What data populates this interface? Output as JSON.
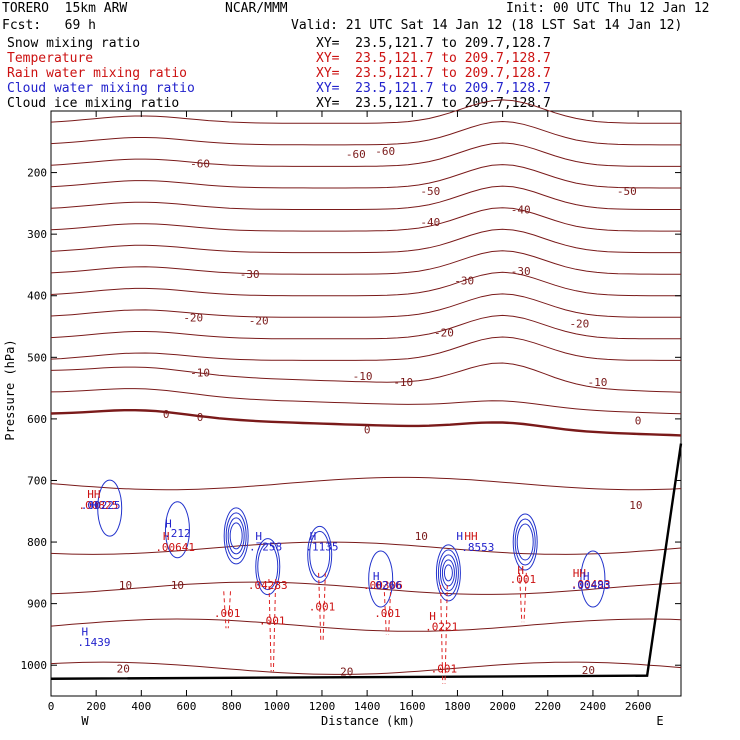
{
  "header": {
    "model": "TORERO  15km ARW",
    "center": "NCAR/MMM",
    "init": "Init: 00 UTC Thu 12 Jan 12",
    "fcst": "Fcst:   69 h",
    "valid": "Valid: 21 UTC Sat 14 Jan 12 (18 LST Sat 14 Jan 12)",
    "fields": [
      {
        "name": "Snow mixing ratio",
        "xy": "XY=  23.5,121.7 to 209.7,128.7",
        "color": "#000000"
      },
      {
        "name": "Temperature",
        "xy": "XY=  23.5,121.7 to 209.7,128.7",
        "color": "#cc1111"
      },
      {
        "name": "Rain water mixing ratio",
        "xy": "XY=  23.5,121.7 to 209.7,128.7",
        "color": "#cc1111"
      },
      {
        "name": "Cloud water mixing ratio",
        "xy": "XY=  23.5,121.7 to 209.7,128.7",
        "color": "#2222cc"
      },
      {
        "name": "Cloud ice mixing ratio",
        "xy": "XY=  23.5,121.7 to 209.7,128.7",
        "color": "#000000"
      }
    ]
  },
  "chart_data": {
    "type": "contour-cross-section",
    "xlabel": "Distance (km)",
    "ylabel": "Pressure (hPa)",
    "xlim": [
      0,
      2790
    ],
    "ylim": [
      1050,
      100
    ],
    "x_ticks": [
      0,
      200,
      400,
      600,
      800,
      1000,
      1200,
      1400,
      1600,
      1800,
      2000,
      2200,
      2400,
      2600
    ],
    "y_ticks": [
      200,
      300,
      400,
      500,
      600,
      700,
      800,
      900,
      1000
    ],
    "x_end_labels": {
      "left": "W",
      "right": "E"
    },
    "temperature_labels": [
      {
        "text": "-60",
        "x": 660,
        "p": 185
      },
      {
        "text": "-60",
        "x": 1350,
        "p": 170
      },
      {
        "text": "-60",
        "x": 1480,
        "p": 165
      },
      {
        "text": "-50",
        "x": 1680,
        "p": 230
      },
      {
        "text": "-50",
        "x": 2550,
        "p": 230
      },
      {
        "text": "-40",
        "x": 1680,
        "p": 280
      },
      {
        "text": "-40",
        "x": 2080,
        "p": 260
      },
      {
        "text": "-30",
        "x": 880,
        "p": 365
      },
      {
        "text": "-30",
        "x": 1830,
        "p": 375
      },
      {
        "text": "-30",
        "x": 2080,
        "p": 360
      },
      {
        "text": "-20",
        "x": 630,
        "p": 435
      },
      {
        "text": "-20",
        "x": 920,
        "p": 440
      },
      {
        "text": "-20",
        "x": 1740,
        "p": 460
      },
      {
        "text": "-20",
        "x": 2340,
        "p": 445
      },
      {
        "text": "-10",
        "x": 660,
        "p": 525
      },
      {
        "text": "-10",
        "x": 1380,
        "p": 530
      },
      {
        "text": "-10",
        "x": 1560,
        "p": 540
      },
      {
        "text": "-10",
        "x": 2420,
        "p": 540
      },
      {
        "text": "0",
        "x": 510,
        "p": 592
      },
      {
        "text": "0",
        "x": 660,
        "p": 597
      },
      {
        "text": "0",
        "x": 1400,
        "p": 617
      },
      {
        "text": "0",
        "x": 2600,
        "p": 603
      },
      {
        "text": "10",
        "x": 2590,
        "p": 740
      },
      {
        "text": "10",
        "x": 1640,
        "p": 790
      },
      {
        "text": "10",
        "x": 330,
        "p": 870
      },
      {
        "text": "10",
        "x": 560,
        "p": 870
      },
      {
        "text": "20",
        "x": 320,
        "p": 1005
      },
      {
        "text": "20",
        "x": 1310,
        "p": 1010
      },
      {
        "text": "20",
        "x": 2380,
        "p": 1008
      }
    ],
    "rain_maxima": [
      {
        "text": "HH",
        "x": 190,
        "p": 722,
        "color": "#cc1111"
      },
      {
        "text": ".00825",
        "x": 210,
        "p": 740,
        "color": "#cc1111"
      },
      {
        "text": "H",
        "x": 510,
        "p": 790,
        "color": "#cc1111"
      },
      {
        "text": ".00641",
        "x": 550,
        "p": 808,
        "color": "#cc1111"
      },
      {
        "text": ".04283",
        "x": 960,
        "p": 870,
        "color": "#cc1111"
      },
      {
        "text": ".001",
        "x": 780,
        "p": 915,
        "color": "#cc1111"
      },
      {
        "text": ".001",
        "x": 980,
        "p": 927,
        "color": "#cc1111"
      },
      {
        "text": ".001",
        "x": 1200,
        "p": 905,
        "color": "#cc1111"
      },
      {
        "text": ".00306",
        "x": 1470,
        "p": 870,
        "color": "#cc1111"
      },
      {
        "text": ".001",
        "x": 1490,
        "p": 915,
        "color": "#cc1111"
      },
      {
        "text": "H",
        "x": 1690,
        "p": 920,
        "color": "#cc1111"
      },
      {
        "text": ".0221",
        "x": 1730,
        "p": 937,
        "color": "#cc1111"
      },
      {
        "text": ".001",
        "x": 1740,
        "p": 1005,
        "color": "#cc1111"
      },
      {
        "text": "HH",
        "x": 1860,
        "p": 790,
        "color": "#cc1111"
      },
      {
        "text": "H",
        "x": 2080,
        "p": 845,
        "color": "#cc1111"
      },
      {
        "text": ".001",
        "x": 2090,
        "p": 860,
        "color": "#cc1111"
      },
      {
        "text": "HH",
        "x": 2340,
        "p": 850,
        "color": "#cc1111"
      },
      {
        "text": ".00493",
        "x": 2390,
        "p": 868,
        "color": "#cc1111"
      }
    ],
    "cloud_water_maxima": [
      {
        "text": "H",
        "x": 190,
        "p": 740,
        "color": "#2222cc"
      },
      {
        "text": ".00225",
        "x": 220,
        "p": 740,
        "color": "#2222cc"
      },
      {
        "text": "H",
        "x": 520,
        "p": 770,
        "color": "#2222cc"
      },
      {
        "text": ".212",
        "x": 560,
        "p": 785,
        "color": "#2222cc"
      },
      {
        "text": "H",
        "x": 920,
        "p": 790,
        "color": "#2222cc"
      },
      {
        "text": ".7258",
        "x": 950,
        "p": 807,
        "color": "#2222cc"
      },
      {
        "text": "H",
        "x": 1160,
        "p": 790,
        "color": "#2222cc"
      },
      {
        "text": ".1135",
        "x": 1200,
        "p": 807,
        "color": "#2222cc"
      },
      {
        "text": "H",
        "x": 1440,
        "p": 855,
        "color": "#2222cc"
      },
      {
        "text": ".0266",
        "x": 1480,
        "p": 870,
        "color": "#2222cc"
      },
      {
        "text": "H",
        "x": 1810,
        "p": 790,
        "color": "#2222cc"
      },
      {
        "text": ".8553",
        "x": 1890,
        "p": 808,
        "color": "#2222cc"
      },
      {
        "text": "H",
        "x": 2370,
        "p": 855,
        "color": "#2222cc"
      },
      {
        "text": ".00483",
        "x": 2390,
        "p": 870,
        "color": "#2222cc"
      },
      {
        "text": "H",
        "x": 150,
        "p": 945,
        "color": "#2222cc"
      },
      {
        "text": ".1439",
        "x": 190,
        "p": 962,
        "color": "#2222cc"
      }
    ]
  }
}
